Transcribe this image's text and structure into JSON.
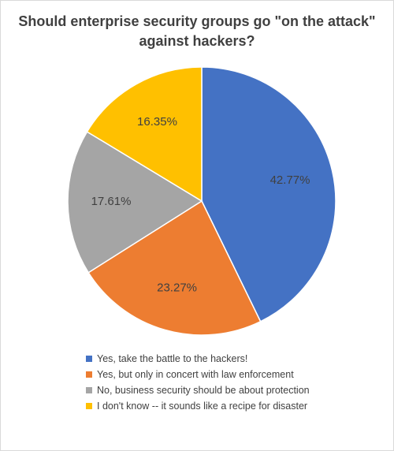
{
  "colors": {
    "background": "#ffffff",
    "text": "#404040",
    "slice_border": "#ffffff"
  },
  "chart_data": {
    "type": "pie",
    "title": "Should enterprise security groups go \"on the attack\" against hackers?",
    "legend_position": "bottom",
    "slices": [
      {
        "label": "Yes, take the battle to the hackers!",
        "value": 42.77,
        "display": "42.77%",
        "color": "#4472C4"
      },
      {
        "label": "Yes, but only in concert with law enforcement",
        "value": 23.27,
        "display": "23.27%",
        "color": "#ED7D31"
      },
      {
        "label": "No, business security should be about protection",
        "value": 17.61,
        "display": "17.61%",
        "color": "#A5A5A5"
      },
      {
        "label": "I don't know -- it sounds like a recipe for disaster",
        "value": 16.35,
        "display": "16.35%",
        "color": "#FFC000"
      }
    ]
  }
}
